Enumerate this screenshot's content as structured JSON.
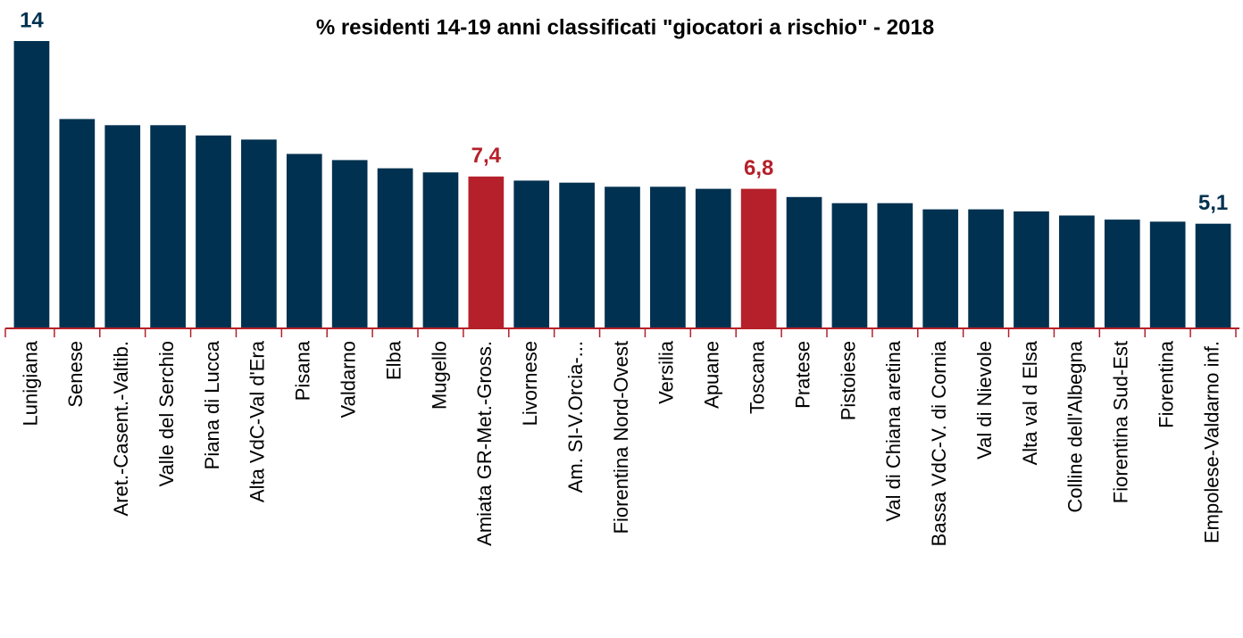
{
  "chart_data": {
    "type": "bar",
    "title": "% residenti 14-19 anni classificati \"giocatori a rischio\" - 2018",
    "categories": [
      "Lunigiana",
      "Senese",
      "Aret.-Casent.-Valtib.",
      "Valle del Serchio",
      "Piana di Lucca",
      "Alta VdC-Val d'Era",
      "Pisana",
      "Valdarno",
      "Elba",
      "Mugello",
      "Amiata GR-Met.-Gross.",
      "Livornese",
      "Am. SI-V.Orcia-...",
      "Fiorentina Nord-Ovest",
      "Versilia",
      "Apuane",
      "Toscana",
      "Pratese",
      "Pistoiese",
      "Val di Chiana aretina",
      "Bassa VdC-V. di Cornia",
      "Val di Nievole",
      "Alta val d Elsa",
      "Colline dell'Albegna",
      "Fiorentina Sud-Est",
      "Fiorentina",
      "Empolese-Valdarno inf."
    ],
    "values": [
      14,
      10.2,
      9.9,
      9.9,
      9.4,
      9.2,
      8.5,
      8.2,
      7.8,
      7.6,
      7.4,
      7.2,
      7.1,
      6.9,
      6.9,
      6.8,
      6.8,
      6.4,
      6.1,
      6.1,
      5.8,
      5.8,
      5.7,
      5.5,
      5.3,
      5.2,
      5.1
    ],
    "value_labels": [
      "14",
      null,
      null,
      null,
      null,
      null,
      null,
      null,
      null,
      null,
      "7,4",
      null,
      null,
      null,
      null,
      null,
      "6,8",
      null,
      null,
      null,
      null,
      null,
      null,
      null,
      null,
      null,
      "5,1"
    ],
    "colors": [
      "#003150",
      "#003150",
      "#003150",
      "#003150",
      "#003150",
      "#003150",
      "#003150",
      "#003150",
      "#003150",
      "#003150",
      "#b5202a",
      "#003150",
      "#003150",
      "#003150",
      "#003150",
      "#003150",
      "#b5202a",
      "#003150",
      "#003150",
      "#003150",
      "#003150",
      "#003150",
      "#003150",
      "#003150",
      "#003150",
      "#003150",
      "#003150"
    ],
    "ylim": [
      0,
      14
    ]
  }
}
